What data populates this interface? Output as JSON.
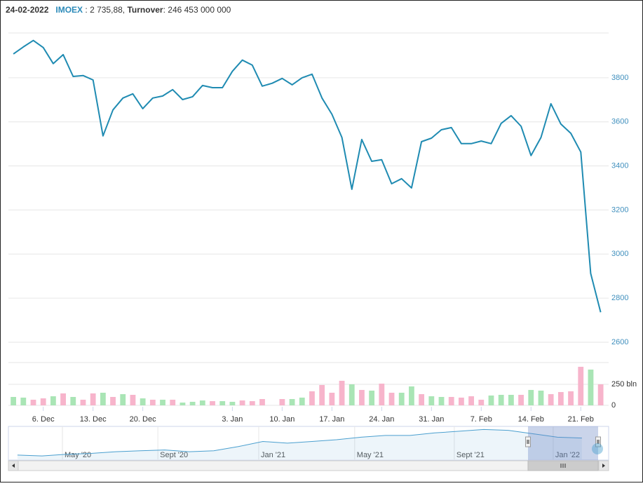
{
  "header": {
    "date": "24-02-2022",
    "index": "IMOEX",
    "value": "2 735,88",
    "turnover_label": "Turnover",
    "turnover": "246 453 000 000"
  },
  "chart_data": [
    {
      "type": "line",
      "color": "#1f8bb2",
      "grid": true,
      "values": [
        3908,
        3940,
        3969,
        3937,
        3864,
        3905,
        3806,
        3810,
        3790,
        3536,
        3654,
        3708,
        3727,
        3660,
        3708,
        3717,
        3746,
        3701,
        3714,
        3765,
        3755,
        3755,
        3829,
        3880,
        3857,
        3762,
        3775,
        3797,
        3768,
        3800,
        3816,
        3708,
        3634,
        3529,
        3294,
        3520,
        3421,
        3428,
        3319,
        3342,
        3300,
        3510,
        3526,
        3564,
        3574,
        3501,
        3501,
        3513,
        3501,
        3593,
        3628,
        3580,
        3447,
        3529,
        3682,
        3590,
        3548,
        3463,
        2912,
        2735.88
      ],
      "xlim": [
        -0.5,
        59.8
      ],
      "ylim": [
        2600,
        4000
      ],
      "yticks": [
        2600,
        2800,
        3000,
        3200,
        3400,
        3600,
        3800
      ]
    },
    {
      "type": "bar",
      "grid": true,
      "values": [
        100,
        92,
        67,
        83,
        108,
        142,
        100,
        67,
        142,
        150,
        100,
        133,
        125,
        83,
        67,
        67,
        67,
        33,
        42,
        58,
        50,
        50,
        42,
        58,
        50,
        75,
        null,
        75,
        75,
        92,
        167,
        242,
        150,
        292,
        250,
        183,
        175,
        258,
        150,
        150,
        225,
        133,
        108,
        100,
        100,
        92,
        108,
        67,
        117,
        125,
        125,
        125,
        183,
        175,
        133,
        158,
        167,
        458,
        425,
        250
      ],
      "colors": [
        "#a9e5b5",
        "#a9e5b5",
        "#f7b4cb",
        "#f7b4cb",
        "#a9e5b5",
        "#f7b4cb",
        "#a9e5b5",
        "#f7b4cb",
        "#f7b4cb",
        "#a9e5b5",
        "#f7b4cb",
        "#a9e5b5",
        "#f7b4cb",
        "#a9e5b5",
        "#f7b4cb",
        "#a9e5b5",
        "#f7b4cb",
        "#a9e5b5",
        "#a9e5b5",
        "#a9e5b5",
        "#f7b4cb",
        "#a9e5b5",
        "#a9e5b5",
        "#f7b4cb",
        "#f7b4cb",
        "#f7b4cb",
        null,
        "#f7b4cb",
        "#a9e5b5",
        "#a9e5b5",
        "#f7b4cb",
        "#f7b4cb",
        "#f7b4cb",
        "#f7b4cb",
        "#a9e5b5",
        "#f7b4cb",
        "#a9e5b5",
        "#f7b4cb",
        "#f7b4cb",
        "#a9e5b5",
        "#a9e5b5",
        "#f7b4cb",
        "#a9e5b5",
        "#a9e5b5",
        "#f7b4cb",
        "#f7b4cb",
        "#f7b4cb",
        "#f7b4cb",
        "#a9e5b5",
        "#a9e5b5",
        "#a9e5b5",
        "#f7b4cb",
        "#a9e5b5",
        "#a9e5b5",
        "#f7b4cb",
        "#f7b4cb",
        "#f7b4cb",
        "#f7b4cb",
        "#a9e5b5",
        "#f7b4cb"
      ],
      "xlim": [
        -0.5,
        59.8
      ],
      "ylim": [
        0,
        500
      ],
      "yticks": [
        0,
        {
          "value": 250,
          "label": "250 bln"
        }
      ],
      "xticks": [
        {
          "value": 3,
          "label": "6. Dec"
        },
        {
          "value": 8,
          "label": "13. Dec"
        },
        {
          "value": 13,
          "label": "20. Dec"
        },
        {
          "value": 22,
          "label": "3. Jan"
        },
        {
          "value": 27,
          "label": "10. Jan"
        },
        {
          "value": 32,
          "label": "17. Jan"
        },
        {
          "value": 37,
          "label": "24. Jan"
        },
        {
          "value": 42,
          "label": "31. Jan"
        },
        {
          "value": 47,
          "label": "7. Feb"
        },
        {
          "value": 52,
          "label": "14. Feb"
        },
        {
          "value": 57,
          "label": "21. Feb"
        }
      ]
    },
    {
      "type": "area",
      "color": "#4a9fcf",
      "values": [
        2650,
        2600,
        2700,
        2750,
        2850,
        2900,
        2950,
        2850,
        2900,
        3150,
        3450,
        3350,
        3450,
        3550,
        3700,
        3800,
        3800,
        3950,
        4050,
        4150,
        4100,
        3900,
        3700,
        3650
      ],
      "xlim": [
        -0.37,
        24.09
      ],
      "ylim": [
        2400,
        4250
      ],
      "xticks": [
        {
          "value": 1.83,
          "label": "May '20"
        },
        {
          "value": 5.72,
          "label": "Sept '20"
        },
        {
          "value": 9.83,
          "label": "Jan '21"
        },
        {
          "value": 13.74,
          "label": "May '21"
        },
        {
          "value": 17.8,
          "label": "Sept '21"
        },
        {
          "value": 21.83,
          "label": "Jan '22"
        }
      ]
    }
  ]
}
